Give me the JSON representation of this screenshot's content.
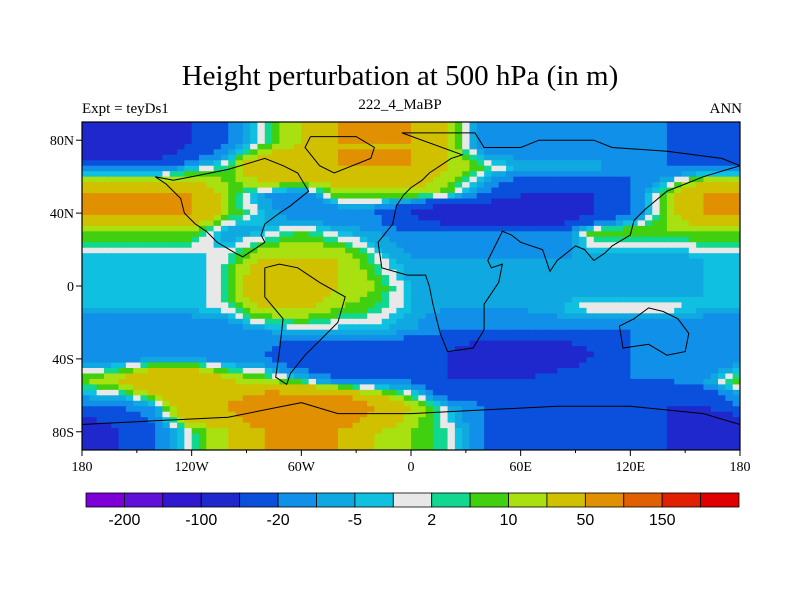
{
  "chart_data": {
    "type": "heatmap",
    "title": "Height perturbation at 500 hPa (in m)",
    "left_string": "Expt = teyDs1",
    "center_string": "222_4_MaBP",
    "right_string": "ANN",
    "x_ticks": [
      "180",
      "120W",
      "60W",
      "0",
      "60E",
      "120E",
      "180"
    ],
    "x_tick_values": [
      -180,
      -120,
      -60,
      0,
      60,
      120,
      180
    ],
    "y_ticks": [
      "80N",
      "40N",
      "0",
      "40S",
      "80S"
    ],
    "y_tick_values": [
      80,
      40,
      0,
      -40,
      -80
    ],
    "xlim": [
      -180,
      180
    ],
    "ylim": [
      -90,
      90
    ],
    "colorbar": {
      "levels": [
        -200,
        -150,
        -100,
        -50,
        -20,
        -10,
        -5,
        -2,
        2,
        5,
        10,
        20,
        50,
        100,
        150,
        200
      ],
      "labels": [
        "-200",
        "-100",
        "-20",
        "-5",
        "2",
        "10",
        "50",
        "150"
      ],
      "colors": [
        "#7d00d9",
        "#6010d8",
        "#3018d0",
        "#1e28cc",
        "#0a50dc",
        "#1090e8",
        "#10a8e0",
        "#10c0e0",
        "#e8e8e8",
        "#10d890",
        "#40d010",
        "#a8e010",
        "#d0c000",
        "#e09000",
        "#e06000",
        "#e02000",
        "#e00000"
      ]
    },
    "bands": [
      {
        "lat": 78,
        "values": [
          -100,
          -100,
          -100,
          -50,
          -20,
          2,
          20,
          50,
          50,
          50,
          20,
          -20,
          -20,
          -20,
          -20,
          -20,
          -20,
          -50,
          -50
        ]
      },
      {
        "lat": 65,
        "values": [
          -20,
          -20,
          -20,
          -5,
          5,
          50,
          50,
          50,
          50,
          50,
          20,
          5,
          -5,
          -5,
          -5,
          -20,
          -20,
          -20,
          -20
        ]
      },
      {
        "lat": 50,
        "values": [
          50,
          50,
          50,
          50,
          10,
          -10,
          -20,
          10,
          10,
          10,
          5,
          -20,
          -50,
          -50,
          -50,
          -20,
          10,
          50,
          50
        ]
      },
      {
        "lat": 40,
        "values": [
          50,
          50,
          50,
          50,
          10,
          -5,
          -20,
          -20,
          -20,
          -50,
          -100,
          -100,
          -100,
          -100,
          -50,
          -20,
          10,
          50,
          50
        ]
      },
      {
        "lat": 30,
        "values": [
          10,
          10,
          10,
          10,
          -10,
          -5,
          5,
          -5,
          -10,
          -20,
          -20,
          -20,
          -10,
          -20,
          10,
          10,
          10,
          10,
          10
        ]
      },
      {
        "lat": 15,
        "values": [
          -5,
          -5,
          -5,
          -5,
          2,
          20,
          20,
          20,
          2,
          -10,
          -10,
          -10,
          -10,
          -10,
          -10,
          -10,
          -10,
          -5,
          -5
        ]
      },
      {
        "lat": 0,
        "values": [
          -5,
          -5,
          -5,
          -5,
          5,
          50,
          50,
          20,
          10,
          -5,
          -10,
          -10,
          -10,
          -10,
          -10,
          -10,
          -10,
          -5,
          -5
        ]
      },
      {
        "lat": -12,
        "values": [
          -5,
          -5,
          -5,
          -5,
          2,
          20,
          20,
          10,
          5,
          -5,
          -10,
          -10,
          -10,
          -5,
          2,
          2,
          2,
          -5,
          -5
        ]
      },
      {
        "lat": -25,
        "values": [
          -20,
          -20,
          -20,
          -20,
          -20,
          -10,
          -5,
          -5,
          -5,
          -10,
          -20,
          -20,
          -20,
          -20,
          -20,
          -20,
          -20,
          -20,
          -20
        ]
      },
      {
        "lat": -38,
        "values": [
          -20,
          -20,
          -20,
          -20,
          -20,
          -20,
          -50,
          -50,
          -50,
          -50,
          -50,
          -100,
          -100,
          -100,
          -50,
          -20,
          -20,
          -20,
          -20
        ]
      },
      {
        "lat": -52,
        "values": [
          10,
          20,
          50,
          50,
          20,
          10,
          2,
          -20,
          -20,
          -20,
          -50,
          -50,
          -50,
          -20,
          -20,
          -20,
          -20,
          -10,
          10
        ]
      },
      {
        "lat": -66,
        "values": [
          -20,
          -20,
          -10,
          50,
          50,
          100,
          100,
          100,
          50,
          20,
          -5,
          -20,
          -50,
          -50,
          -50,
          -50,
          -50,
          -50,
          -20
        ]
      },
      {
        "lat": -80,
        "values": [
          -100,
          -50,
          -20,
          2,
          20,
          50,
          50,
          50,
          20,
          10,
          2,
          -20,
          -50,
          -50,
          -50,
          -50,
          -50,
          -100,
          -100
        ]
      }
    ]
  }
}
